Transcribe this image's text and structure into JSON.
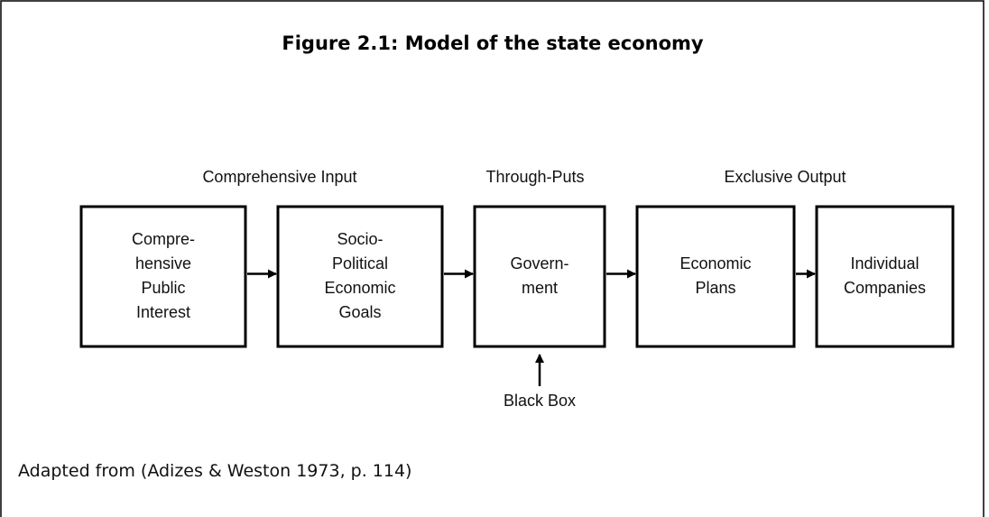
{
  "title": "Figure 2.1: Model of the state economy",
  "stages": [
    "Comprehensive Input",
    "Through-Puts",
    "Exclusive Output"
  ],
  "nodes": [
    {
      "lines": [
        "Compre-",
        "hensive",
        "Public",
        "Interest"
      ]
    },
    {
      "lines": [
        "Socio-",
        "Political",
        "Economic",
        "Goals"
      ]
    },
    {
      "lines": [
        "Govern-",
        "ment"
      ]
    },
    {
      "lines": [
        "Economic",
        "Plans"
      ]
    },
    {
      "lines": [
        "Individual",
        "Companies"
      ]
    }
  ],
  "black_box": "Black Box",
  "caption": "Adapted from (Adizes & Weston 1973, p. 114)"
}
